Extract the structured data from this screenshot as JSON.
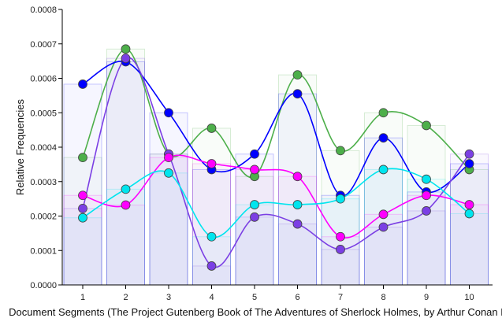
{
  "chart_data": {
    "type": "line",
    "title": "",
    "xlabel": "Document Segments (The Project Gutenberg Book of The Adventures of Sherlock Holmes, by Arthur Conan Doyle)",
    "ylabel": "Relative Frequencies",
    "x": [
      1,
      2,
      3,
      4,
      5,
      6,
      7,
      8,
      9,
      10
    ],
    "xticks": [
      "1",
      "2",
      "3",
      "4",
      "5",
      "6",
      "7",
      "8",
      "9",
      "10"
    ],
    "yticks": [
      "0.0000",
      "0.0001",
      "0.0002",
      "0.0003",
      "0.0004",
      "0.0005",
      "0.0006",
      "0.0007",
      "0.0008"
    ],
    "ylim": [
      0,
      0.0008
    ],
    "grid": false,
    "smoothed": true,
    "background_bars": true,
    "series": [
      {
        "color": "#4daf4a",
        "values": [
          0.00037,
          0.000685,
          0.00038,
          0.000455,
          0.000315,
          0.00061,
          0.00039,
          0.0005,
          0.000463,
          0.000335
        ]
      },
      {
        "color": "#0000ff",
        "values": [
          0.000583,
          0.000648,
          0.0005,
          0.000335,
          0.00038,
          0.000555,
          0.00026,
          0.000427,
          0.00027,
          0.000352
        ]
      },
      {
        "color": "#7b3fe4",
        "values": [
          0.000222,
          0.000658,
          0.00038,
          5.5e-05,
          0.000197,
          0.000177,
          0.000103,
          0.000168,
          0.000215,
          0.00038
        ]
      },
      {
        "color": "#ff00ff",
        "values": [
          0.00026,
          0.000232,
          0.00037,
          0.000352,
          0.000335,
          0.000315,
          0.00014,
          0.000205,
          0.00026,
          0.000233
        ]
      },
      {
        "color": "#00e5ee",
        "values": [
          0.000195,
          0.000278,
          0.000325,
          0.00014,
          0.000233,
          0.000233,
          0.00025,
          0.000335,
          0.000307,
          0.000207
        ]
      }
    ]
  }
}
